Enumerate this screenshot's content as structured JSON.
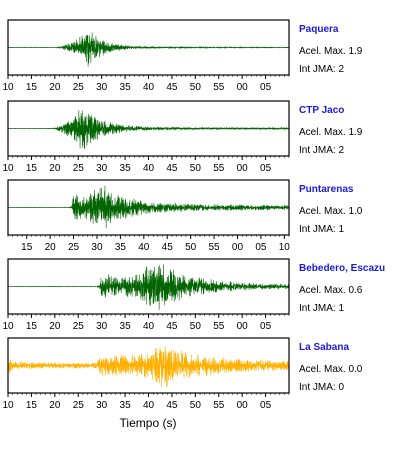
{
  "chart_data": {
    "type": "line",
    "xlabel": "Tiempo (s)",
    "x_unit": "s",
    "grid": false,
    "panels": [
      {
        "station": "Paquera",
        "accel_label": "Acel. Max. 1.9",
        "jma_label": "Int JMA: 2",
        "color": "#006400",
        "xlim": [
          10,
          70
        ],
        "x_ticks": [
          "10",
          "15",
          "20",
          "25",
          "30",
          "35",
          "40",
          "45",
          "50",
          "55",
          "00",
          "05"
        ],
        "x_tick_values": [
          10,
          15,
          20,
          25,
          30,
          35,
          40,
          45,
          50,
          55,
          60,
          65
        ],
        "ylim": [
          -1,
          1
        ],
        "envelope": [
          [
            21,
            0.02
          ],
          [
            22,
            0.1
          ],
          [
            24,
            0.25
          ],
          [
            26,
            0.55
          ],
          [
            27,
            0.95
          ],
          [
            28,
            0.6
          ],
          [
            30,
            0.35
          ],
          [
            33,
            0.14
          ],
          [
            36,
            0.07
          ],
          [
            40,
            0.04
          ],
          [
            50,
            0.02
          ],
          [
            70,
            0.01
          ]
        ],
        "seed": 11
      },
      {
        "station": "CTP Jaco",
        "accel_label": "Acel. Max. 1.9",
        "jma_label": "Int JMA: 2",
        "color": "#006400",
        "xlim": [
          10,
          70
        ],
        "x_ticks": [
          "10",
          "15",
          "20",
          "25",
          "30",
          "35",
          "40",
          "45",
          "50",
          "55",
          "00",
          "05"
        ],
        "x_tick_values": [
          10,
          15,
          20,
          25,
          30,
          35,
          40,
          45,
          50,
          55,
          60,
          65
        ],
        "ylim": [
          -1,
          1
        ],
        "envelope": [
          [
            20,
            0.02
          ],
          [
            21,
            0.12
          ],
          [
            23,
            0.35
          ],
          [
            25,
            0.7
          ],
          [
            26,
            0.95
          ],
          [
            28,
            0.55
          ],
          [
            31,
            0.3
          ],
          [
            35,
            0.15
          ],
          [
            40,
            0.08
          ],
          [
            50,
            0.05
          ],
          [
            70,
            0.03
          ]
        ],
        "seed": 23
      },
      {
        "station": "Puntarenas",
        "accel_label": "Acel. Max. 1.0",
        "jma_label": "Int JMA: 1",
        "color": "#006400",
        "xlim": [
          10,
          70
        ],
        "x_ticks": [
          "15",
          "20",
          "25",
          "30",
          "35",
          "40",
          "45",
          "50",
          "55",
          "00",
          "05",
          "10"
        ],
        "x_tick_values": [
          14,
          19,
          24,
          29,
          34,
          39,
          44,
          49,
          54,
          59,
          64,
          69
        ],
        "ylim": [
          -1,
          1
        ],
        "envelope": [
          [
            23.5,
            0.02
          ],
          [
            24,
            0.6
          ],
          [
            26,
            0.45
          ],
          [
            29,
            0.8
          ],
          [
            31,
            0.95
          ],
          [
            33,
            0.6
          ],
          [
            37,
            0.35
          ],
          [
            42,
            0.22
          ],
          [
            50,
            0.15
          ],
          [
            60,
            0.12
          ],
          [
            70,
            0.1
          ]
        ],
        "seed": 37
      },
      {
        "station": "Bebedero, Escazu",
        "accel_label": "Acel. Max. 0.6",
        "jma_label": "Int JMA: 1",
        "color": "#006400",
        "xlim": [
          10,
          70
        ],
        "x_ticks": [
          "10",
          "15",
          "20",
          "25",
          "30",
          "35",
          "40",
          "45",
          "50",
          "55",
          "00",
          "05"
        ],
        "x_tick_values": [
          10,
          15,
          20,
          25,
          30,
          35,
          40,
          45,
          50,
          55,
          60,
          65
        ],
        "ylim": [
          -1,
          1
        ],
        "envelope": [
          [
            29.5,
            0.02
          ],
          [
            30,
            0.55
          ],
          [
            33,
            0.4
          ],
          [
            37,
            0.45
          ],
          [
            40,
            0.9
          ],
          [
            43,
            0.95
          ],
          [
            46,
            0.6
          ],
          [
            50,
            0.4
          ],
          [
            55,
            0.25
          ],
          [
            60,
            0.16
          ],
          [
            70,
            0.1
          ]
        ],
        "seed": 41
      },
      {
        "station": "La Sabana",
        "accel_label": "Acel. Max. 0.0",
        "jma_label": "Int JMA: 0",
        "color": "#ffb000",
        "xlim": [
          10,
          70
        ],
        "x_ticks": [
          "10",
          "15",
          "20",
          "25",
          "30",
          "35",
          "40",
          "45",
          "50",
          "55",
          "00",
          "05"
        ],
        "x_tick_values": [
          10,
          15,
          20,
          25,
          30,
          35,
          40,
          45,
          50,
          55,
          60,
          65
        ],
        "ylim": [
          -1,
          1
        ],
        "envelope": [
          [
            10,
            0.45
          ],
          [
            11,
            0.18
          ],
          [
            18,
            0.12
          ],
          [
            29,
            0.14
          ],
          [
            30,
            0.45
          ],
          [
            33,
            0.5
          ],
          [
            37,
            0.45
          ],
          [
            40,
            0.55
          ],
          [
            43,
            0.95
          ],
          [
            46,
            0.7
          ],
          [
            50,
            0.5
          ],
          [
            55,
            0.35
          ],
          [
            62,
            0.25
          ],
          [
            70,
            0.2
          ]
        ],
        "seed": 53
      }
    ]
  }
}
